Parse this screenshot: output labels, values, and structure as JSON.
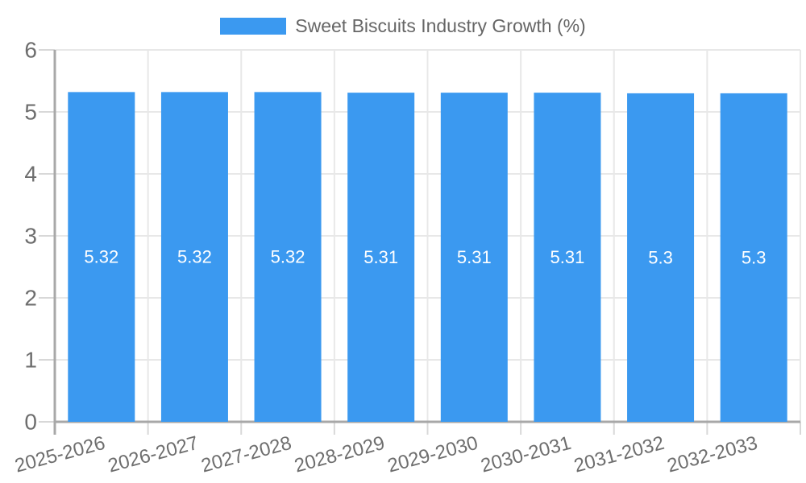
{
  "legend": {
    "label": "Sweet Biscuits Industry Growth (%)"
  },
  "chart_data": {
    "type": "bar",
    "title": "",
    "categories": [
      "2025-2026",
      "2026-2027",
      "2027-2028",
      "2028-2029",
      "2029-2030",
      "2030-2031",
      "2031-2032",
      "2032-2033"
    ],
    "series": [
      {
        "name": "Sweet Biscuits Industry Growth (%)",
        "values": [
          5.32,
          5.32,
          5.32,
          5.31,
          5.31,
          5.31,
          5.3,
          5.3
        ],
        "value_labels": [
          "5.32",
          "5.32",
          "5.32",
          "5.31",
          "5.31",
          "5.31",
          "5.3",
          "5.3"
        ],
        "color": "#3B99F0"
      }
    ],
    "xlabel": "",
    "ylabel": "",
    "ylim": [
      0,
      6
    ],
    "yticks": [
      0,
      1,
      2,
      3,
      4,
      5,
      6
    ],
    "grid": true,
    "legend_position": "top",
    "value_label_position": "center-inside"
  },
  "colors": {
    "bar": "#3B99F0",
    "axis_line": "#a8a8a8",
    "grid_line": "#e8e8e8",
    "tick_line": "#d8d8d8",
    "axis_text": "#6e6e6e",
    "bar_value_text": "#ffffff",
    "legend_text": "#666666",
    "background": "#ffffff"
  }
}
